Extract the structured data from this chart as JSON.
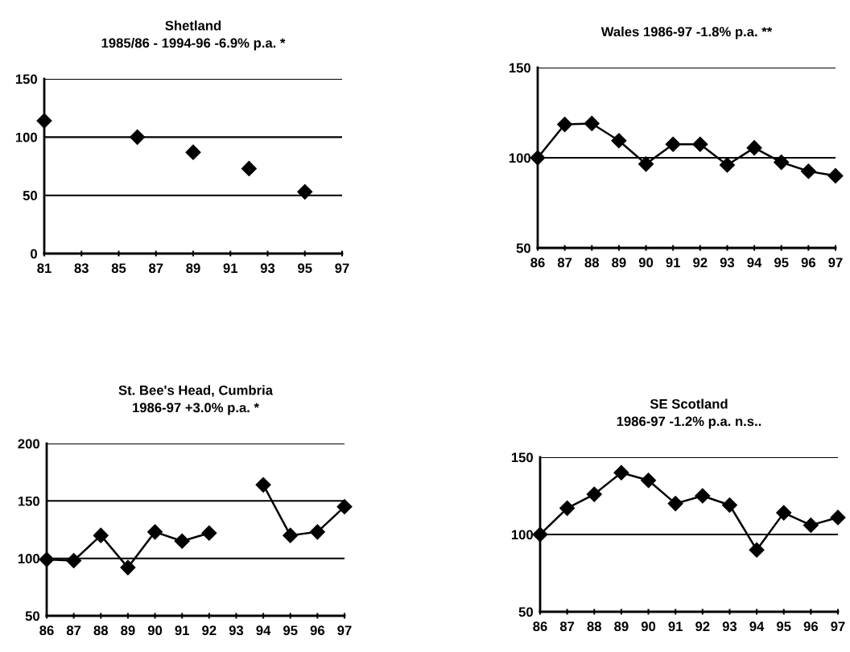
{
  "chart_data": [
    {
      "type": "scatter",
      "title": "Shetland\n1985/86 - 1994-96 -6.9% p.a. *",
      "x": [
        81,
        86,
        89,
        92,
        95
      ],
      "values": [
        114,
        100,
        87,
        73,
        53
      ],
      "color": "#000000",
      "marker": "diamond",
      "xlim": [
        81,
        97
      ],
      "xticks": [
        81,
        83,
        85,
        87,
        89,
        91,
        93,
        95,
        97
      ],
      "ylim": [
        0,
        150
      ],
      "yticks": [
        0,
        50,
        100,
        150
      ],
      "grid": "y",
      "legend": false
    },
    {
      "type": "line",
      "title": "Wales 1986-97 -1.8% p.a. **",
      "categories": [
        "86",
        "87",
        "88",
        "89",
        "90",
        "91",
        "92",
        "93",
        "94",
        "95",
        "96",
        "97"
      ],
      "values": [
        100,
        118.5,
        119,
        109.5,
        96.5,
        107.5,
        107.5,
        96,
        105.5,
        97.5,
        92.5,
        90
      ],
      "color": "#000000",
      "marker": "diamond",
      "line_style": "solid",
      "ylim": [
        50,
        150
      ],
      "yticks": [
        50,
        100,
        150
      ],
      "grid": "y",
      "legend": false
    },
    {
      "type": "line",
      "title": "St. Bee's Head, Cumbria\n1986-97 +3.0% p.a. *",
      "categories": [
        "86",
        "87",
        "88",
        "89",
        "90",
        "91",
        "92",
        "93",
        "94",
        "95",
        "96",
        "97"
      ],
      "values": [
        99,
        98,
        120,
        92,
        123,
        115,
        122,
        null,
        164,
        120,
        123,
        145
      ],
      "color": "#000000",
      "marker": "diamond",
      "line_style": "solid",
      "ylim": [
        50,
        200
      ],
      "yticks": [
        50,
        100,
        150,
        200
      ],
      "grid": "y",
      "legend": false
    },
    {
      "type": "line",
      "title": "SE Scotland\n1986-97 -1.2% p.a. n.s..",
      "categories": [
        "86",
        "87",
        "88",
        "89",
        "90",
        "91",
        "92",
        "93",
        "94",
        "95",
        "96",
        "97"
      ],
      "values": [
        100,
        117,
        126,
        140,
        135,
        120,
        125,
        119,
        90,
        114,
        106,
        111
      ],
      "color": "#000000",
      "marker": "diamond",
      "line_style": "solid",
      "ylim": [
        50,
        150
      ],
      "yticks": [
        50,
        100,
        150
      ],
      "grid": "y",
      "legend": false
    }
  ]
}
